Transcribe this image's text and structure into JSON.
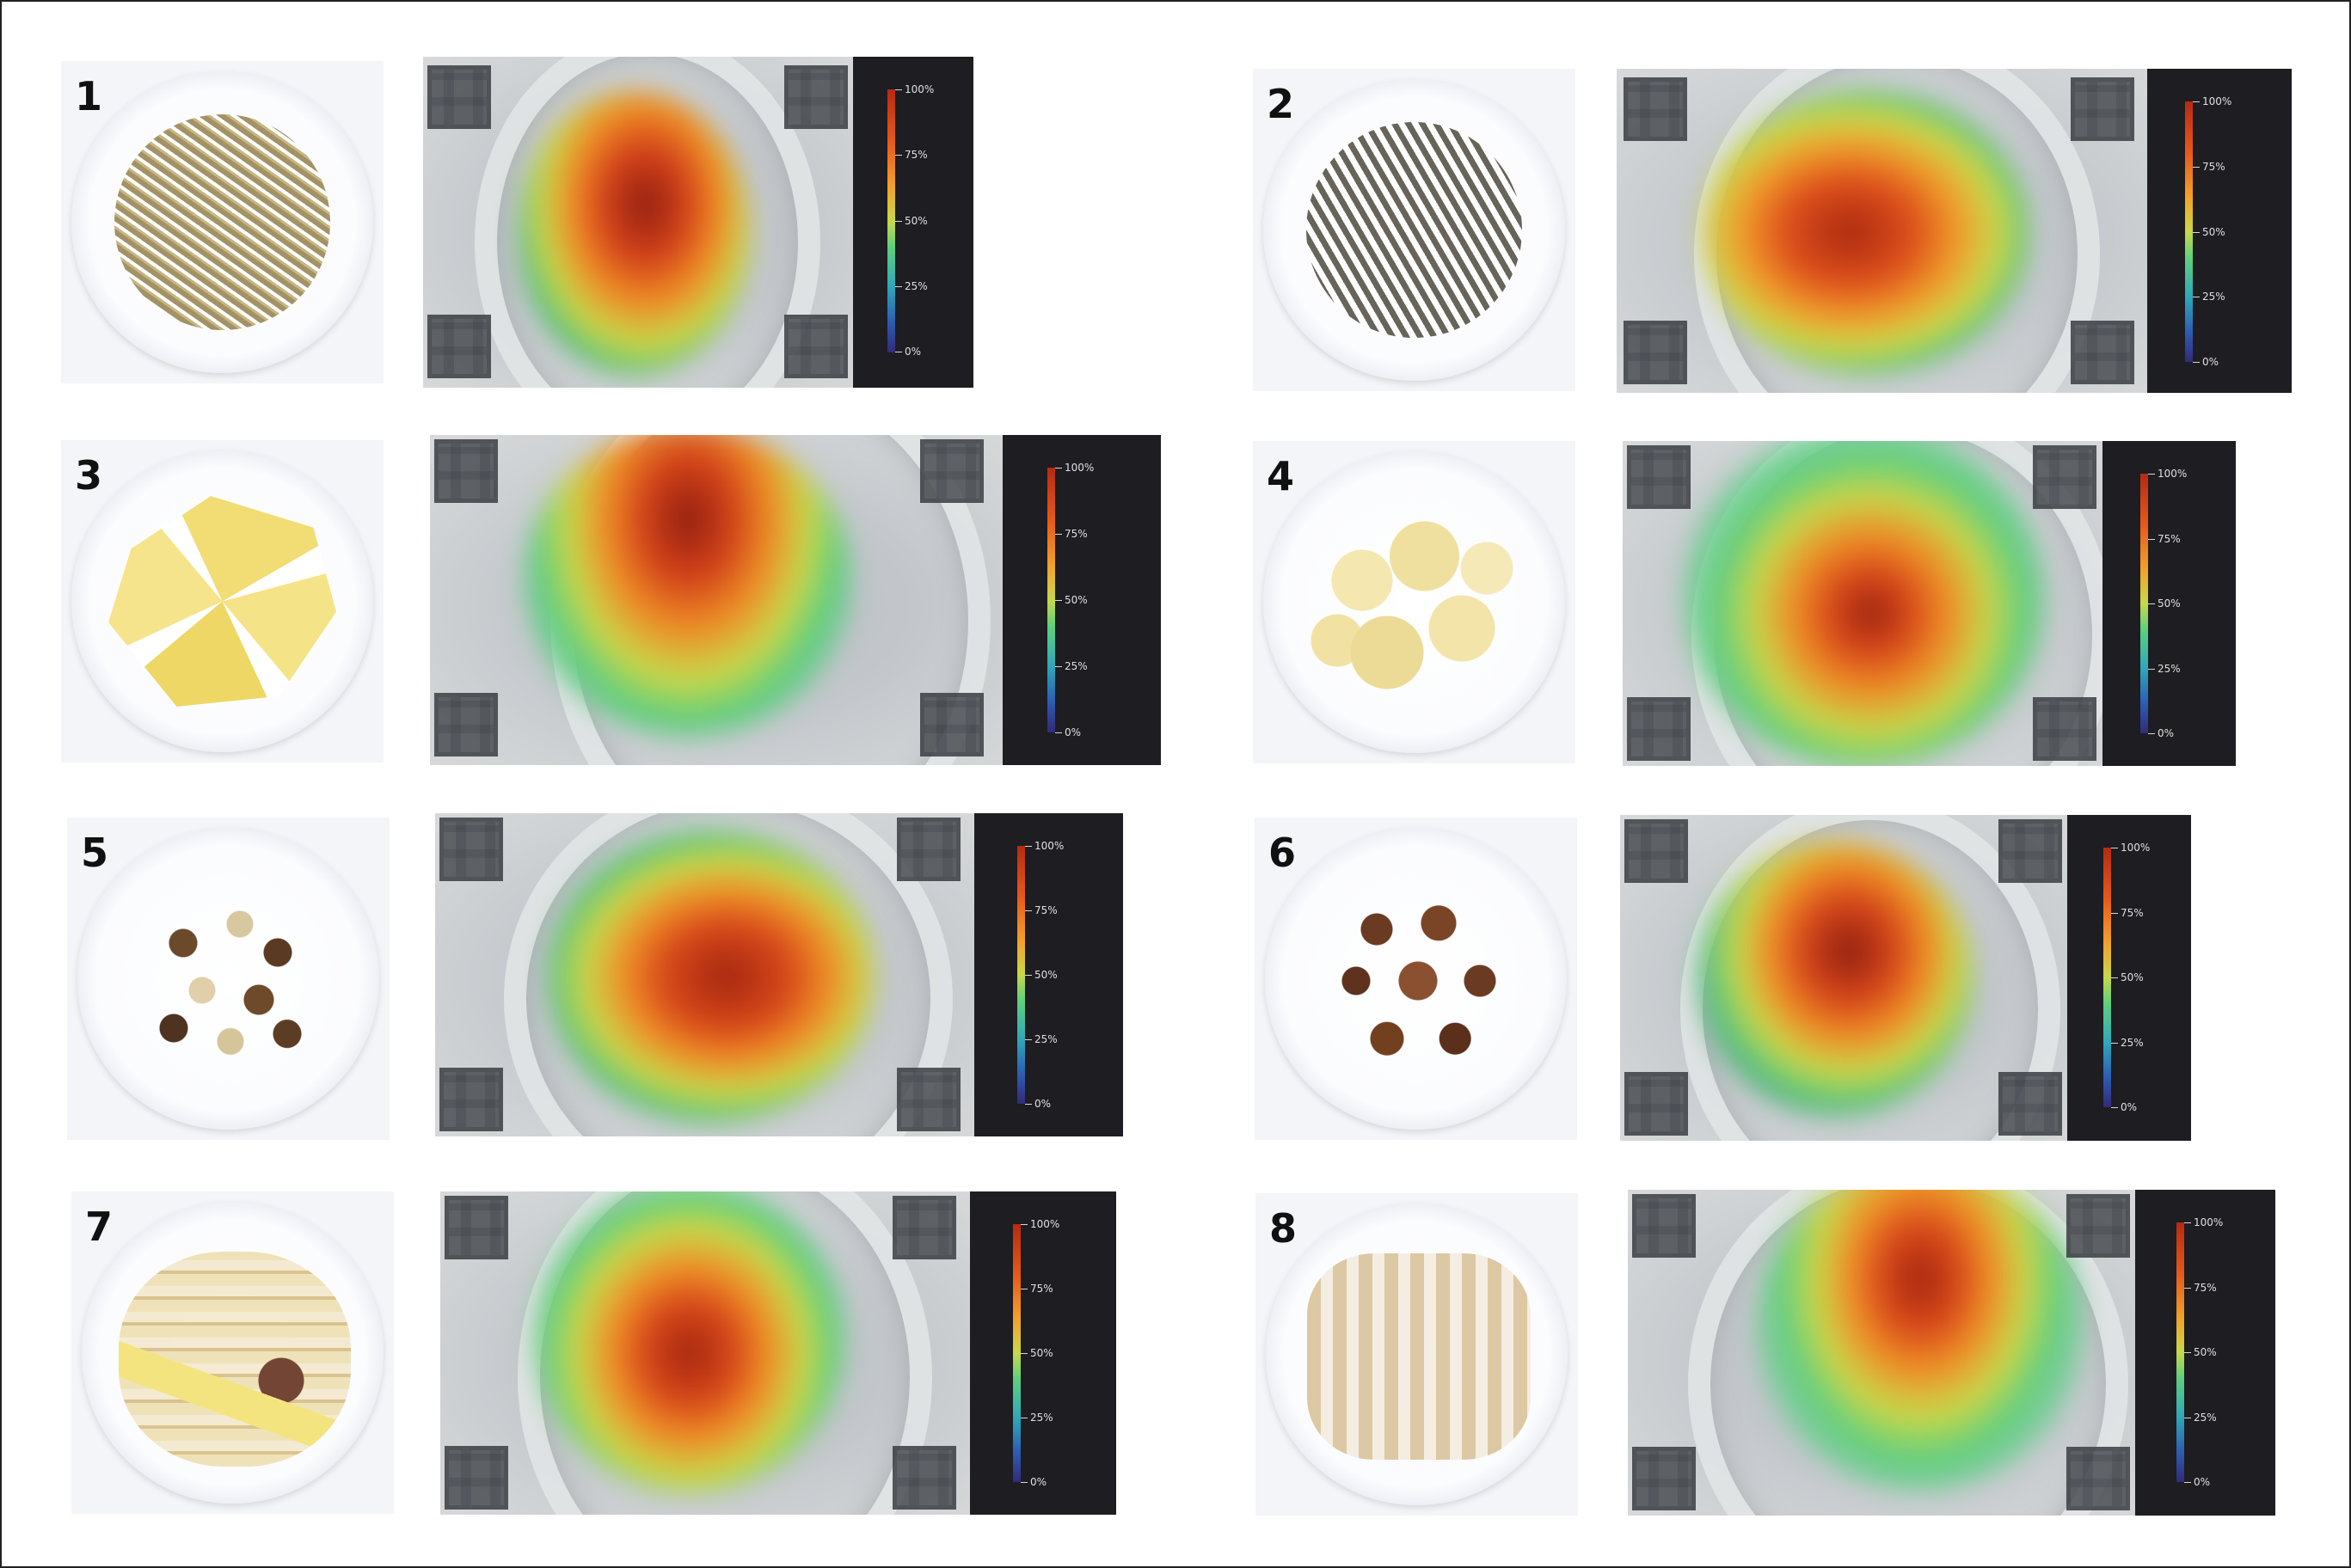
{
  "panels": [
    {
      "label": "1",
      "food_color": "#9b8a5a",
      "food_texture": "mealworms"
    },
    {
      "label": "2",
      "food_color": "#4e4a3e",
      "food_texture": "crickets"
    },
    {
      "label": "3",
      "food_color": "#f2dd74",
      "food_texture": "tortilla-chips"
    },
    {
      "label": "4",
      "food_color": "#f0dfa0",
      "food_texture": "potato-chips"
    },
    {
      "label": "5",
      "food_color": "#6b4a2c",
      "food_texture": "beans"
    },
    {
      "label": "6",
      "food_color": "#6a3a22",
      "food_texture": "crackling"
    },
    {
      "label": "7",
      "food_color": "#e6d6a8",
      "food_texture": "toy-bricks"
    },
    {
      "label": "8",
      "food_color": "#d9c39a",
      "food_texture": "clothespins"
    }
  ],
  "colorbar": {
    "labels": [
      "100%",
      "75%",
      "50%",
      "25%",
      "0%"
    ],
    "colors": [
      "#b52a12",
      "#f2a22b",
      "#c9d84a",
      "#2fa8b9",
      "#322a7a"
    ]
  }
}
